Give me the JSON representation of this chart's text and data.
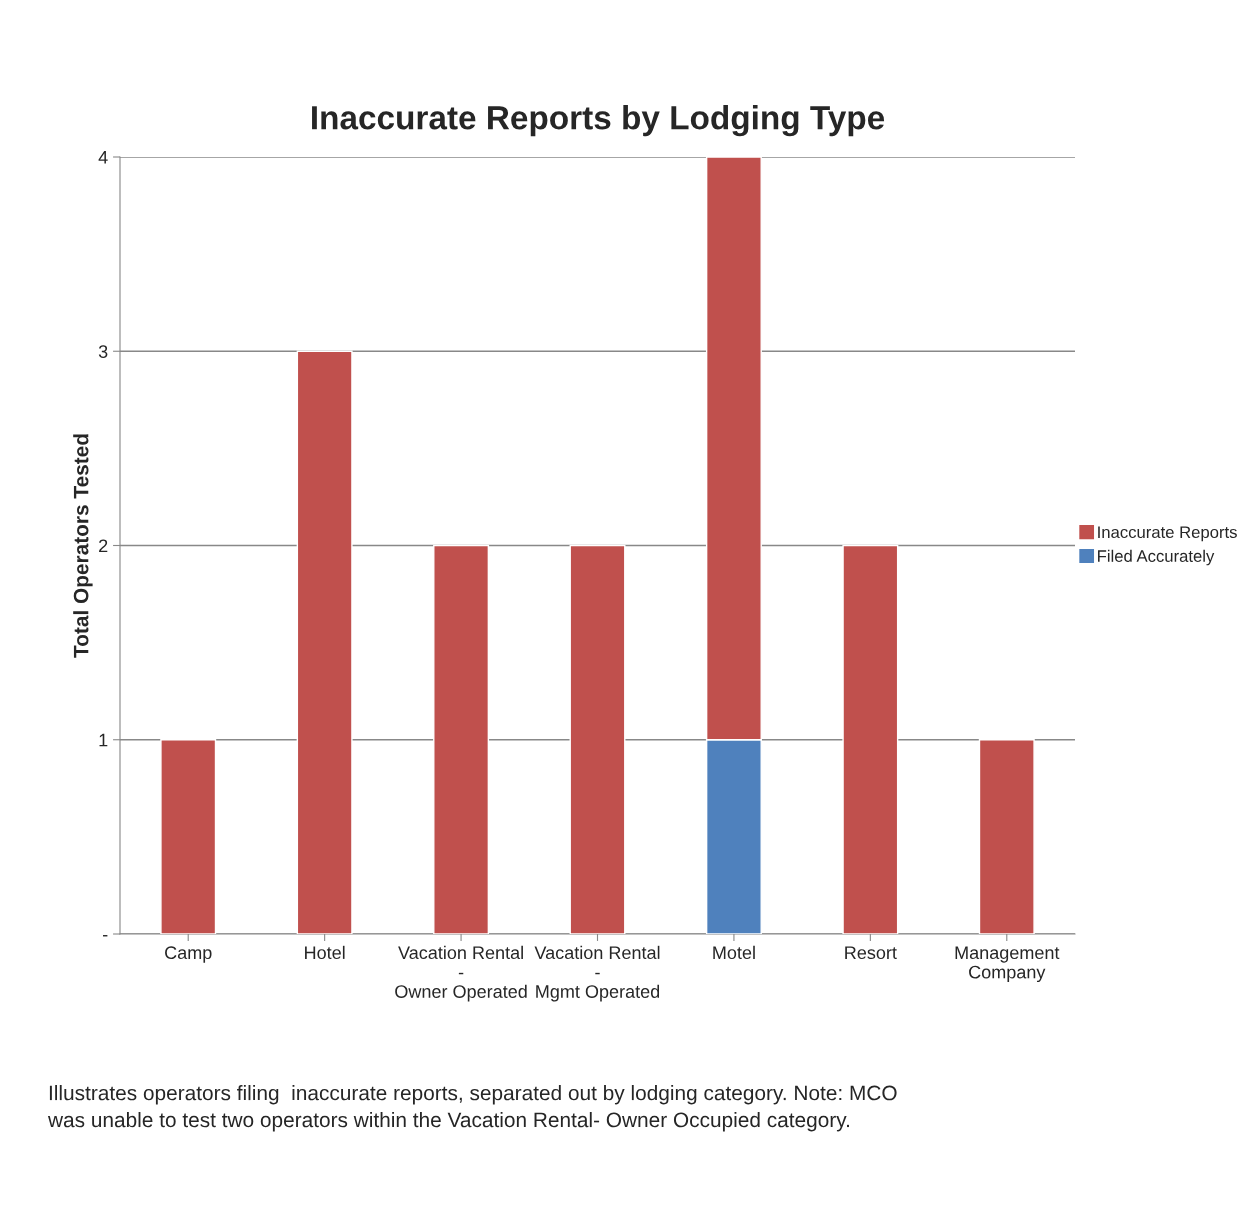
{
  "chart_data": {
    "type": "bar",
    "title": "Inaccurate Reports by Lodging Type",
    "ylabel": "Total Operators Tested",
    "categories": [
      "Camp",
      "Hotel",
      "Vacation Rental\n-\nOwner Operated",
      "Vacation Rental\n-\nMgmt Operated",
      "Motel",
      "Resort",
      "Management\nCompany"
    ],
    "stacked": true,
    "series": [
      {
        "name": "Filed Accurately",
        "color": "#4f81bd",
        "values": [
          0,
          0,
          0,
          0,
          1,
          0,
          0
        ]
      },
      {
        "name": "Inaccurate Reports",
        "color": "#c0504d",
        "values": [
          1,
          3,
          2,
          2,
          3,
          2,
          1
        ]
      }
    ],
    "ylim": [
      0,
      4
    ],
    "yticks": [
      {
        "value": 0,
        "label": "-"
      },
      1,
      2,
      3,
      4
    ],
    "grid": "y",
    "legend": "right",
    "annotations": [
      "Illustrates operators filing  inaccurate reports, separated out by lodging category. Note: MCO\nwas unable to test two operators within the Vacation Rental- Owner Occupied category."
    ]
  }
}
